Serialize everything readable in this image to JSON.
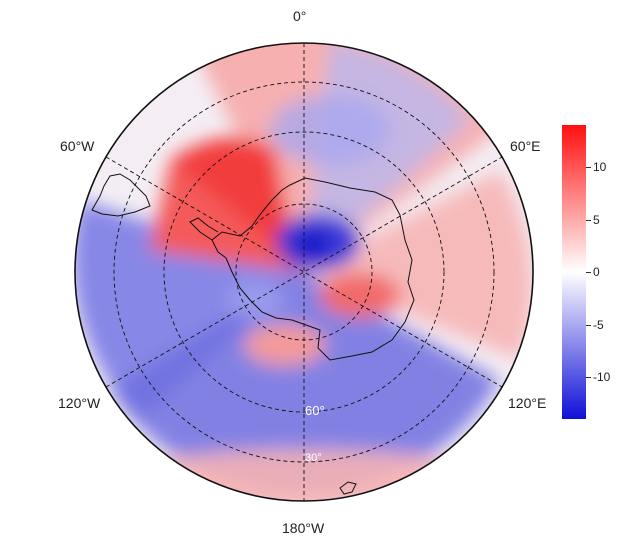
{
  "map": {
    "projection": "south-polar-stereographic",
    "longitude_labels": {
      "top": "0°",
      "upper_left": "60°W",
      "upper_right": "60°E",
      "lower_left": "120°W",
      "lower_right": "120°E",
      "bottom": "180°W"
    },
    "latitude_labels": [
      "60°",
      "30°"
    ],
    "graticule_style": "dashed",
    "field_description": "anomaly field, red positive, blue negative"
  },
  "colorbar": {
    "range": [
      -14,
      14
    ],
    "ticks": [
      {
        "value": 10,
        "label": "10"
      },
      {
        "value": 5,
        "label": "5"
      },
      {
        "value": 0,
        "label": "0"
      },
      {
        "value": -5,
        "label": "-5"
      },
      {
        "value": -10,
        "label": "-10"
      }
    ],
    "colors": {
      "high": "#ff1010",
      "mid": "#ffffff",
      "low": "#1010d8"
    }
  }
}
